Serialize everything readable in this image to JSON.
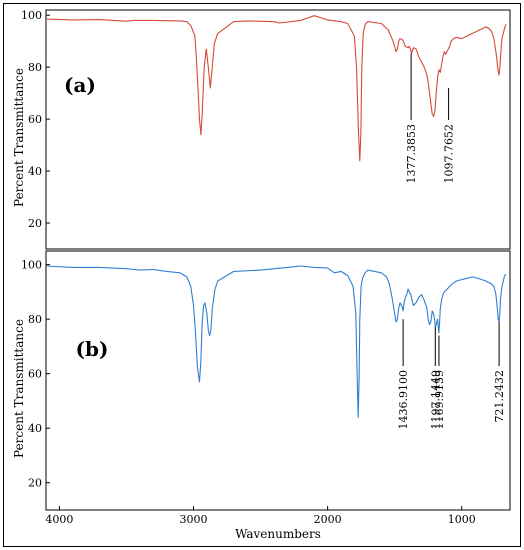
{
  "chart_data": [
    {
      "type": "line",
      "panel_label": "(a)",
      "ylabel": "Percent Transmittance",
      "xlabel": "",
      "ylim": [
        10,
        102
      ],
      "xlim": [
        4100,
        640
      ],
      "yticks": [
        20,
        40,
        60,
        80,
        100
      ],
      "color": "#d44a3a",
      "series": [
        {
          "x": [
            4100,
            3900,
            3700,
            3500,
            3450,
            3300,
            3100,
            3050,
            3020,
            2990,
            2975,
            2955,
            2945,
            2935,
            2920,
            2905,
            2890,
            2875,
            2860,
            2845,
            2820,
            2700,
            2600,
            2400,
            2360,
            2200,
            2100,
            2000,
            1900,
            1850,
            1800,
            1785,
            1770,
            1760,
            1752,
            1745,
            1735,
            1720,
            1700,
            1600,
            1550,
            1520,
            1500,
            1490,
            1480,
            1470,
            1460,
            1440,
            1420,
            1400,
            1390,
            1380,
            1375,
            1370,
            1360,
            1340,
            1320,
            1300,
            1280,
            1260,
            1250,
            1240,
            1230,
            1220,
            1210,
            1200,
            1190,
            1180,
            1170,
            1160,
            1150,
            1140,
            1130,
            1120,
            1110,
            1100,
            1090,
            1080,
            1060,
            1040,
            1000,
            960,
            920,
            880,
            860,
            840,
            820,
            800,
            780,
            760,
            740,
            730,
            722,
            715,
            705,
            700,
            690,
            680,
            670
          ],
          "y": [
            98.5,
            98.2,
            98.3,
            97.7,
            98.0,
            98.0,
            97.8,
            97.5,
            96.0,
            92.0,
            80.0,
            60.0,
            54.0,
            62.0,
            80.0,
            87.0,
            80.0,
            72.0,
            80.0,
            89.0,
            93.0,
            97.5,
            97.8,
            97.5,
            97.0,
            98.0,
            99.8,
            98.2,
            97.5,
            96.8,
            92.0,
            80.0,
            55.0,
            44.0,
            55.0,
            80.0,
            93.0,
            96.5,
            97.5,
            96.8,
            94.5,
            91.0,
            88.0,
            86.0,
            87.0,
            90.0,
            91.0,
            90.5,
            88.0,
            87.5,
            88.0,
            86.5,
            85.0,
            86.0,
            87.5,
            87.0,
            84.0,
            82.0,
            80.0,
            77.0,
            74.0,
            70.0,
            66.0,
            62.0,
            61.0,
            63.0,
            70.0,
            76.0,
            79.0,
            78.0,
            81.0,
            84.0,
            86.0,
            85.0,
            86.0,
            87.0,
            88.0,
            90.0,
            91.0,
            91.5,
            91.0,
            92.0,
            93.0,
            94.0,
            94.5,
            95.0,
            95.5,
            95.0,
            94.0,
            91.0,
            84.0,
            79.0,
            77.0,
            80.0,
            88.0,
            91.0,
            93.0,
            95.0,
            96.5
          ]
        }
      ],
      "annotations": [
        {
          "label": "1377.3853",
          "x": 1377.3853
        },
        {
          "label": "1097.7652",
          "x": 1097.7652
        }
      ]
    },
    {
      "type": "line",
      "panel_label": "(b)",
      "ylabel": "Percent Transmittance",
      "xlabel": "Wavenumbers",
      "ylim": [
        10,
        105
      ],
      "xlim": [
        4100,
        640
      ],
      "xticks": [
        4000,
        3000,
        2000,
        1000
      ],
      "yticks": [
        20,
        40,
        60,
        80,
        100
      ],
      "color": "#2f7fd1",
      "series": [
        {
          "x": [
            4100,
            3900,
            3700,
            3500,
            3400,
            3300,
            3200,
            3100,
            3050,
            3020,
            3000,
            2985,
            2970,
            2955,
            2945,
            2935,
            2925,
            2915,
            2900,
            2890,
            2880,
            2870,
            2860,
            2840,
            2820,
            2700,
            2500,
            2300,
            2200,
            2100,
            2000,
            1950,
            1900,
            1850,
            1810,
            1790,
            1780,
            1772,
            1765,
            1760,
            1750,
            1740,
            1720,
            1700,
            1650,
            1600,
            1560,
            1540,
            1520,
            1500,
            1490,
            1480,
            1470,
            1460,
            1450,
            1440,
            1437,
            1430,
            1420,
            1410,
            1400,
            1390,
            1380,
            1370,
            1360,
            1340,
            1320,
            1300,
            1280,
            1260,
            1250,
            1240,
            1230,
            1220,
            1210,
            1200,
            1197,
            1190,
            1180,
            1175,
            1170,
            1165,
            1160,
            1150,
            1140,
            1130,
            1110,
            1090,
            1070,
            1040,
            1000,
            960,
            920,
            880,
            850,
            820,
            800,
            780,
            760,
            745,
            735,
            728,
            722,
            716,
            710,
            700,
            690,
            680,
            670
          ],
          "y": [
            99.5,
            99.0,
            99.0,
            98.5,
            98.0,
            98.2,
            97.5,
            97.0,
            95.5,
            92.0,
            85.0,
            75.0,
            62.0,
            57.0,
            65.0,
            79.0,
            85.0,
            86.0,
            82.0,
            76.0,
            74.0,
            76.0,
            84.0,
            91.0,
            94.0,
            97.5,
            98.0,
            99.0,
            99.5,
            99.0,
            98.8,
            97.0,
            97.5,
            96.0,
            92.0,
            82.0,
            60.0,
            44.0,
            58.0,
            80.0,
            92.0,
            95.0,
            97.0,
            98.0,
            97.5,
            97.0,
            95.5,
            93.0,
            88.0,
            82.0,
            79.0,
            80.0,
            84.0,
            86.0,
            85.0,
            84.0,
            83.0,
            86.0,
            88.0,
            89.0,
            91.0,
            90.0,
            89.0,
            87.0,
            85.0,
            86.0,
            88.0,
            89.0,
            87.0,
            84.0,
            80.0,
            78.0,
            79.0,
            83.0,
            82.0,
            79.0,
            77.0,
            78.0,
            80.0,
            77.0,
            75.0,
            79.0,
            84.0,
            87.0,
            89.0,
            90.0,
            91.0,
            92.0,
            93.0,
            94.0,
            94.5,
            95.0,
            95.5,
            95.0,
            94.5,
            94.0,
            93.5,
            93.0,
            92.0,
            89.0,
            84.0,
            80.0,
            79.0,
            82.0,
            88.0,
            92.0,
            94.0,
            96.0,
            96.5
          ]
        }
      ],
      "annotations": [
        {
          "label": "1436.9100",
          "x": 1436.91
        },
        {
          "label": "1197.1449",
          "x": 1197.1449
        },
        {
          "label": "1169.9159",
          "x": 1169.9159
        },
        {
          "label": "721.2432",
          "x": 721.2432
        }
      ]
    }
  ]
}
